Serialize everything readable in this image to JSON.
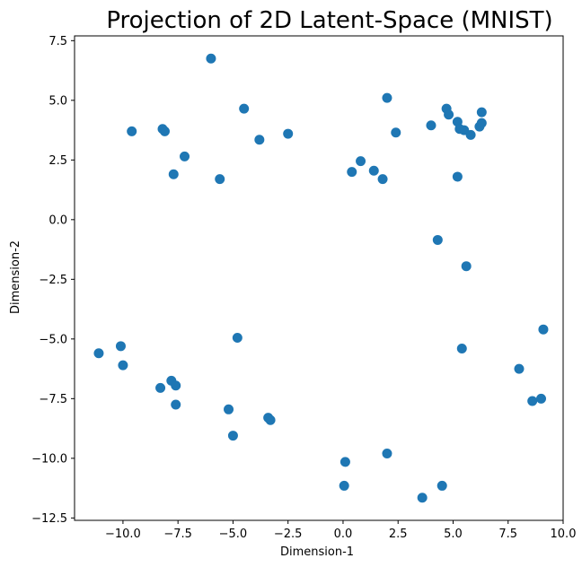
{
  "chart_data": {
    "type": "scatter",
    "title": "Projection of 2D Latent-Space (MNIST)",
    "xlabel": "Dimension-1",
    "ylabel": "Dimension-2",
    "xlim": [
      -12.2,
      10.0
    ],
    "ylim": [
      -12.6,
      7.7
    ],
    "xticks": [
      -10.0,
      -7.5,
      -5.0,
      -2.5,
      0.0,
      2.5,
      5.0,
      7.5,
      10.0
    ],
    "xtick_labels": [
      "−10.0",
      "−7.5",
      "−5.0",
      "−2.5",
      "0.0",
      "2.5",
      "5.0",
      "7.5",
      "10.0"
    ],
    "yticks": [
      7.5,
      5.0,
      2.5,
      0.0,
      -2.5,
      -5.0,
      -7.5,
      -10.0,
      -12.5
    ],
    "ytick_labels": [
      "7.5",
      "5.0",
      "2.5",
      "0.0",
      "−2.5",
      "−5.0",
      "−7.5",
      "−10.0",
      "−12.5"
    ],
    "grid": false,
    "marker_color": "#1f77b4",
    "series": [
      {
        "x": [
          -6.0,
          -4.5,
          -9.6,
          -8.2,
          -8.1,
          -7.2,
          -7.7,
          -3.8,
          -2.5,
          -5.6,
          2.0,
          4.0,
          4.7,
          4.8,
          5.2,
          5.3,
          5.5,
          5.8,
          6.2,
          6.3,
          6.3,
          2.4,
          0.8,
          0.4,
          1.4,
          1.8,
          5.2,
          4.3,
          5.6,
          5.4,
          9.1,
          8.0,
          8.6,
          9.0,
          -11.1,
          -10.1,
          -10.0,
          -8.3,
          -7.8,
          -7.6,
          -7.6,
          -4.8,
          -5.2,
          -5.0,
          -3.4,
          -3.3,
          0.1,
          0.05,
          2.0,
          3.6,
          4.5
        ],
        "y": [
          6.75,
          4.65,
          3.7,
          3.8,
          3.7,
          2.65,
          1.9,
          3.35,
          3.6,
          1.7,
          5.1,
          3.95,
          4.65,
          4.4,
          4.1,
          3.8,
          3.75,
          3.55,
          3.9,
          4.05,
          4.5,
          3.65,
          2.45,
          2.0,
          2.05,
          1.7,
          1.8,
          -0.85,
          -1.95,
          -5.4,
          -4.6,
          -6.25,
          -7.6,
          -7.5,
          -5.6,
          -5.3,
          -6.1,
          -7.05,
          -6.75,
          -6.95,
          -7.75,
          -4.95,
          -7.95,
          -9.05,
          -8.3,
          -8.4,
          -10.15,
          -11.15,
          -9.8,
          -11.65,
          -11.15
        ]
      }
    ]
  }
}
